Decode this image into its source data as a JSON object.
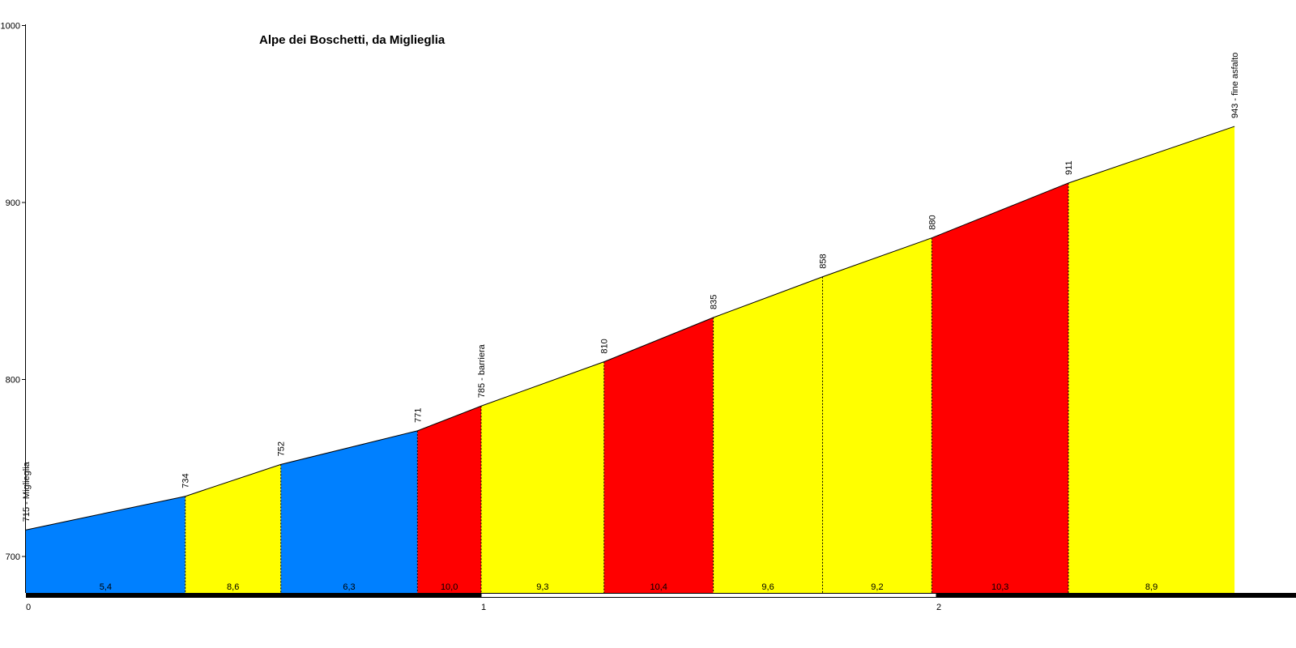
{
  "chart_data": {
    "type": "area",
    "title": "Alpe dei Boschetti, da Miglieglia",
    "xlabel": "",
    "ylabel": "",
    "xlim": [
      0,
      2.78
    ],
    "ylim": [
      680,
      1000
    ],
    "y_ticks": [
      "700",
      "800",
      "900",
      "1000"
    ],
    "x_ticks": [
      "0",
      "1",
      "2"
    ],
    "grid": false,
    "points": [
      {
        "x": 0.0,
        "elevation": 715,
        "label": "715 - Miglieglia"
      },
      {
        "x": 0.35,
        "elevation": 734,
        "label": "734"
      },
      {
        "x": 0.56,
        "elevation": 752,
        "label": "752"
      },
      {
        "x": 0.86,
        "elevation": 771,
        "label": "771"
      },
      {
        "x": 1.0,
        "elevation": 785,
        "label": "785 - barriera"
      },
      {
        "x": 1.27,
        "elevation": 810,
        "label": "810"
      },
      {
        "x": 1.51,
        "elevation": 835,
        "label": "835"
      },
      {
        "x": 1.75,
        "elevation": 858,
        "label": "858"
      },
      {
        "x": 1.99,
        "elevation": 880,
        "label": "880"
      },
      {
        "x": 2.29,
        "elevation": 911,
        "label": "911"
      },
      {
        "x": 2.655,
        "elevation": 943,
        "label": "943 - fine asfalto"
      }
    ],
    "segments": [
      {
        "gradient": "5,4",
        "color": "#0080ff"
      },
      {
        "gradient": "8,6",
        "color": "#ffff00"
      },
      {
        "gradient": "6,3",
        "color": "#0080ff"
      },
      {
        "gradient": "10,0",
        "color": "#ff0000"
      },
      {
        "gradient": "9,3",
        "color": "#ffff00"
      },
      {
        "gradient": "10,4",
        "color": "#ff0000"
      },
      {
        "gradient": "9,6",
        "color": "#ffff00"
      },
      {
        "gradient": "9,2",
        "color": "#ffff00"
      },
      {
        "gradient": "10,3",
        "color": "#ff0000"
      },
      {
        "gradient": "8,9",
        "color": "#ffff00"
      }
    ]
  }
}
